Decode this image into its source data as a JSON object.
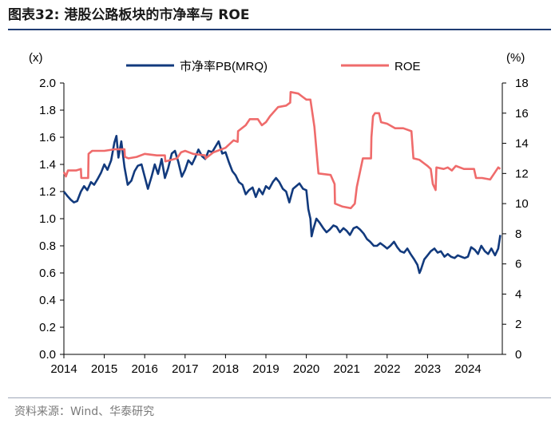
{
  "header": {
    "figure_label": "图表32:",
    "figure_title": "港股公路板块的市净率与 ROE"
  },
  "footer": {
    "source": "资料来源：Wind、华泰研究"
  },
  "colors": {
    "pb_series": "#123a7d",
    "roe_series": "#ef6b6b",
    "rule": "#1f3c73"
  },
  "chart_data": {
    "type": "line",
    "title": "港股公路板块的市净率与 ROE",
    "left_axis_unit": "(x)",
    "right_axis_unit": "(%)",
    "xlim": [
      2014,
      2024.85
    ],
    "ylim_left": [
      0,
      2.0
    ],
    "ylim_right": [
      0,
      18
    ],
    "x_ticks": [
      "2014",
      "2015",
      "2016",
      "2017",
      "2018",
      "2019",
      "2020",
      "2021",
      "2022",
      "2023",
      "2024"
    ],
    "y_left_ticks": [
      "0.0",
      "0.2",
      "0.4",
      "0.6",
      "0.8",
      "1.0",
      "1.2",
      "1.4",
      "1.6",
      "1.8",
      "2.0"
    ],
    "y_right_ticks": [
      "0",
      "2",
      "4",
      "6",
      "8",
      "10",
      "12",
      "14",
      "16",
      "18"
    ],
    "legend_position": "top",
    "series": [
      {
        "name": "市净率PB(MRQ)",
        "axis": "left",
        "points": [
          [
            2014.0,
            1.2
          ],
          [
            2014.08,
            1.17
          ],
          [
            2014.17,
            1.14
          ],
          [
            2014.25,
            1.12
          ],
          [
            2014.33,
            1.13
          ],
          [
            2014.42,
            1.2
          ],
          [
            2014.5,
            1.24
          ],
          [
            2014.58,
            1.21
          ],
          [
            2014.67,
            1.27
          ],
          [
            2014.75,
            1.25
          ],
          [
            2014.83,
            1.29
          ],
          [
            2014.92,
            1.34
          ],
          [
            2015.0,
            1.4
          ],
          [
            2015.08,
            1.36
          ],
          [
            2015.17,
            1.43
          ],
          [
            2015.25,
            1.56
          ],
          [
            2015.3,
            1.61
          ],
          [
            2015.35,
            1.45
          ],
          [
            2015.42,
            1.57
          ],
          [
            2015.5,
            1.38
          ],
          [
            2015.58,
            1.25
          ],
          [
            2015.67,
            1.28
          ],
          [
            2015.75,
            1.35
          ],
          [
            2015.83,
            1.39
          ],
          [
            2015.92,
            1.4
          ],
          [
            2016.0,
            1.31
          ],
          [
            2016.08,
            1.22
          ],
          [
            2016.17,
            1.31
          ],
          [
            2016.25,
            1.4
          ],
          [
            2016.33,
            1.33
          ],
          [
            2016.42,
            1.44
          ],
          [
            2016.5,
            1.3
          ],
          [
            2016.58,
            1.37
          ],
          [
            2016.67,
            1.48
          ],
          [
            2016.75,
            1.5
          ],
          [
            2016.83,
            1.42
          ],
          [
            2016.92,
            1.31
          ],
          [
            2017.0,
            1.36
          ],
          [
            2017.08,
            1.43
          ],
          [
            2017.17,
            1.4
          ],
          [
            2017.25,
            1.45
          ],
          [
            2017.33,
            1.51
          ],
          [
            2017.42,
            1.46
          ],
          [
            2017.5,
            1.44
          ],
          [
            2017.58,
            1.5
          ],
          [
            2017.67,
            1.49
          ],
          [
            2017.75,
            1.53
          ],
          [
            2017.83,
            1.57
          ],
          [
            2017.92,
            1.48
          ],
          [
            2018.0,
            1.49
          ],
          [
            2018.08,
            1.42
          ],
          [
            2018.17,
            1.35
          ],
          [
            2018.25,
            1.32
          ],
          [
            2018.33,
            1.27
          ],
          [
            2018.42,
            1.25
          ],
          [
            2018.5,
            1.18
          ],
          [
            2018.58,
            1.21
          ],
          [
            2018.67,
            1.23
          ],
          [
            2018.75,
            1.16
          ],
          [
            2018.83,
            1.22
          ],
          [
            2018.92,
            1.18
          ],
          [
            2019.0,
            1.24
          ],
          [
            2019.08,
            1.22
          ],
          [
            2019.17,
            1.27
          ],
          [
            2019.25,
            1.3
          ],
          [
            2019.33,
            1.27
          ],
          [
            2019.42,
            1.22
          ],
          [
            2019.5,
            1.2
          ],
          [
            2019.58,
            1.12
          ],
          [
            2019.67,
            1.22
          ],
          [
            2019.75,
            1.24
          ],
          [
            2019.83,
            1.26
          ],
          [
            2019.92,
            1.22
          ],
          [
            2020.0,
            1.21
          ],
          [
            2020.05,
            1.07
          ],
          [
            2020.1,
            1.0
          ],
          [
            2020.13,
            0.87
          ],
          [
            2020.17,
            0.92
          ],
          [
            2020.25,
            1.0
          ],
          [
            2020.33,
            0.97
          ],
          [
            2020.42,
            0.93
          ],
          [
            2020.5,
            0.9
          ],
          [
            2020.58,
            0.92
          ],
          [
            2020.67,
            0.95
          ],
          [
            2020.75,
            0.94
          ],
          [
            2020.83,
            0.9
          ],
          [
            2020.92,
            0.93
          ],
          [
            2021.0,
            0.91
          ],
          [
            2021.08,
            0.88
          ],
          [
            2021.17,
            0.93
          ],
          [
            2021.25,
            0.94
          ],
          [
            2021.33,
            0.92
          ],
          [
            2021.42,
            0.89
          ],
          [
            2021.5,
            0.85
          ],
          [
            2021.58,
            0.83
          ],
          [
            2021.67,
            0.8
          ],
          [
            2021.75,
            0.8
          ],
          [
            2021.83,
            0.82
          ],
          [
            2021.92,
            0.8
          ],
          [
            2022.0,
            0.78
          ],
          [
            2022.08,
            0.8
          ],
          [
            2022.17,
            0.83
          ],
          [
            2022.25,
            0.79
          ],
          [
            2022.33,
            0.76
          ],
          [
            2022.42,
            0.75
          ],
          [
            2022.5,
            0.78
          ],
          [
            2022.58,
            0.74
          ],
          [
            2022.67,
            0.7
          ],
          [
            2022.75,
            0.66
          ],
          [
            2022.8,
            0.6
          ],
          [
            2022.83,
            0.62
          ],
          [
            2022.92,
            0.7
          ],
          [
            2023.0,
            0.73
          ],
          [
            2023.08,
            0.76
          ],
          [
            2023.17,
            0.78
          ],
          [
            2023.25,
            0.75
          ],
          [
            2023.33,
            0.76
          ],
          [
            2023.42,
            0.72
          ],
          [
            2023.5,
            0.74
          ],
          [
            2023.58,
            0.72
          ],
          [
            2023.67,
            0.71
          ],
          [
            2023.75,
            0.73
          ],
          [
            2023.83,
            0.72
          ],
          [
            2023.92,
            0.71
          ],
          [
            2024.0,
            0.72
          ],
          [
            2024.08,
            0.79
          ],
          [
            2024.17,
            0.77
          ],
          [
            2024.25,
            0.74
          ],
          [
            2024.33,
            0.8
          ],
          [
            2024.42,
            0.76
          ],
          [
            2024.5,
            0.74
          ],
          [
            2024.58,
            0.78
          ],
          [
            2024.67,
            0.73
          ],
          [
            2024.75,
            0.78
          ],
          [
            2024.8,
            0.88
          ]
        ]
      },
      {
        "name": "ROE",
        "axis": "right",
        "points": [
          [
            2014.0,
            12.1
          ],
          [
            2014.05,
            11.8
          ],
          [
            2014.1,
            12.2
          ],
          [
            2014.3,
            12.2
          ],
          [
            2014.42,
            12.3
          ],
          [
            2014.43,
            11.7
          ],
          [
            2014.6,
            11.7
          ],
          [
            2014.61,
            13.3
          ],
          [
            2014.7,
            13.5
          ],
          [
            2015.0,
            13.5
          ],
          [
            2015.25,
            13.6
          ],
          [
            2015.5,
            13.6
          ],
          [
            2015.51,
            13.1
          ],
          [
            2015.6,
            13.0
          ],
          [
            2015.8,
            13.1
          ],
          [
            2016.0,
            13.3
          ],
          [
            2016.3,
            13.2
          ],
          [
            2016.5,
            13.2
          ],
          [
            2016.51,
            12.8
          ],
          [
            2016.8,
            13.0
          ],
          [
            2016.9,
            13.4
          ],
          [
            2017.0,
            13.5
          ],
          [
            2017.2,
            13.3
          ],
          [
            2017.5,
            13.2
          ],
          [
            2017.51,
            13.0
          ],
          [
            2017.7,
            13.4
          ],
          [
            2017.9,
            13.6
          ],
          [
            2018.0,
            13.7
          ],
          [
            2018.2,
            14.2
          ],
          [
            2018.3,
            14.1
          ],
          [
            2018.31,
            14.8
          ],
          [
            2018.5,
            15.2
          ],
          [
            2018.6,
            15.6
          ],
          [
            2018.8,
            15.6
          ],
          [
            2018.9,
            15.2
          ],
          [
            2019.0,
            15.4
          ],
          [
            2019.1,
            15.8
          ],
          [
            2019.3,
            16.4
          ],
          [
            2019.5,
            16.5
          ],
          [
            2019.6,
            16.7
          ],
          [
            2019.61,
            17.4
          ],
          [
            2019.8,
            17.3
          ],
          [
            2019.9,
            17.1
          ],
          [
            2020.0,
            16.9
          ],
          [
            2020.1,
            16.9
          ],
          [
            2020.2,
            15.1
          ],
          [
            2020.3,
            12.0
          ],
          [
            2020.6,
            11.9
          ],
          [
            2020.7,
            11.3
          ],
          [
            2020.71,
            10.0
          ],
          [
            2020.9,
            9.8
          ],
          [
            2021.1,
            9.7
          ],
          [
            2021.2,
            10.0
          ],
          [
            2021.25,
            11.1
          ],
          [
            2021.4,
            13.0
          ],
          [
            2021.6,
            13.0
          ],
          [
            2021.61,
            14.4
          ],
          [
            2021.65,
            15.8
          ],
          [
            2021.7,
            16.0
          ],
          [
            2021.8,
            16.0
          ],
          [
            2021.85,
            15.4
          ],
          [
            2022.0,
            15.3
          ],
          [
            2022.2,
            15.0
          ],
          [
            2022.4,
            15.0
          ],
          [
            2022.6,
            14.8
          ],
          [
            2022.65,
            13.0
          ],
          [
            2022.8,
            12.9
          ],
          [
            2022.9,
            12.7
          ],
          [
            2023.0,
            12.5
          ],
          [
            2023.08,
            12.3
          ],
          [
            2023.13,
            11.3
          ],
          [
            2023.2,
            10.9
          ],
          [
            2023.22,
            12.4
          ],
          [
            2023.4,
            12.3
          ],
          [
            2023.5,
            12.4
          ],
          [
            2023.6,
            12.2
          ],
          [
            2023.7,
            12.5
          ],
          [
            2023.9,
            12.3
          ],
          [
            2024.0,
            12.3
          ],
          [
            2024.15,
            12.3
          ],
          [
            2024.2,
            11.7
          ],
          [
            2024.35,
            11.7
          ],
          [
            2024.55,
            11.6
          ],
          [
            2024.65,
            12.0
          ],
          [
            2024.75,
            12.4
          ],
          [
            2024.8,
            12.3
          ]
        ]
      }
    ]
  }
}
